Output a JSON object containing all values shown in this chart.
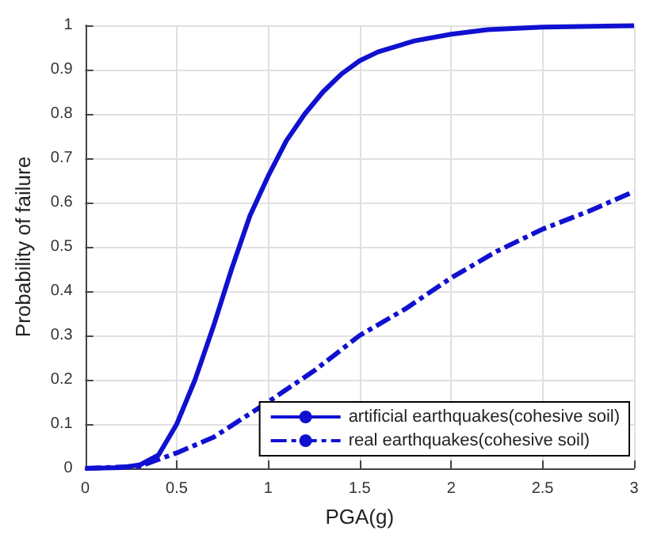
{
  "chart_data": {
    "type": "line",
    "xlabel": "PGA(g)",
    "ylabel": "Probability of failure",
    "xlim": [
      0,
      3
    ],
    "xticks": [
      0,
      0.5,
      1,
      1.5,
      2,
      2.5,
      3
    ],
    "ylim": [
      0,
      1
    ],
    "yticks": [
      0,
      0.1,
      0.2,
      0.3,
      0.4,
      0.5,
      0.6,
      0.7,
      0.8,
      0.9,
      1
    ],
    "grid": true,
    "legend": "bottom right",
    "marker": "none",
    "series": [
      {
        "name": "artificial earthquakes(cohesive soil)",
        "color": "#1010d0",
        "line_style": "solid",
        "x": [
          0,
          0.2,
          0.3,
          0.4,
          0.5,
          0.6,
          0.7,
          0.8,
          0.9,
          1.0,
          1.1,
          1.2,
          1.3,
          1.4,
          1.5,
          1.6,
          1.8,
          2.0,
          2.2,
          2.5,
          3.0
        ],
        "values": [
          0,
          0.002,
          0.008,
          0.03,
          0.1,
          0.2,
          0.32,
          0.45,
          0.57,
          0.66,
          0.74,
          0.8,
          0.85,
          0.89,
          0.92,
          0.94,
          0.965,
          0.98,
          0.99,
          0.996,
          0.999
        ]
      },
      {
        "name": "real earthquakes(cohesive soil)",
        "color": "#1010d0",
        "line_style": "dashed",
        "x": [
          0,
          0.3,
          0.4,
          0.5,
          0.7,
          1.0,
          1.25,
          1.5,
          1.75,
          2.0,
          2.25,
          2.5,
          2.75,
          3.0
        ],
        "values": [
          0,
          0.005,
          0.02,
          0.035,
          0.07,
          0.15,
          0.22,
          0.3,
          0.36,
          0.43,
          0.49,
          0.54,
          0.58,
          0.625
        ]
      }
    ]
  }
}
